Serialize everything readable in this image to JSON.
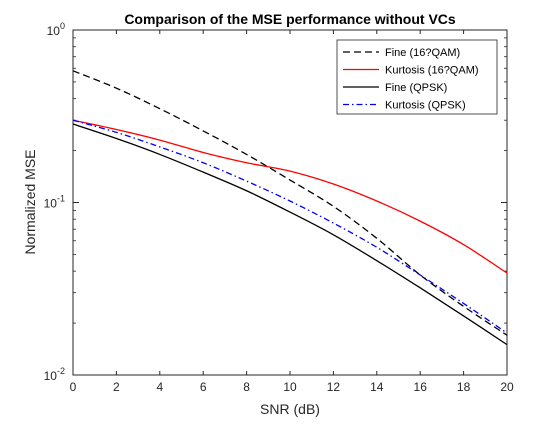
{
  "chart_data": {
    "type": "line",
    "title": "Comparison of the MSE performance without VCs",
    "xlabel": "SNR (dB)",
    "ylabel": "Normalized MSE",
    "xlim": [
      0,
      20
    ],
    "ylim": [
      0.01,
      1
    ],
    "y_scale": "log",
    "x_ticks": [
      0,
      2,
      4,
      6,
      8,
      10,
      12,
      14,
      16,
      18,
      20
    ],
    "y_ticks": [
      {
        "value": 0.01,
        "base": "10",
        "exp": "-2"
      },
      {
        "value": 0.1,
        "base": "10",
        "exp": "-1"
      },
      {
        "value": 1,
        "base": "10",
        "exp": "0"
      }
    ],
    "grid": false,
    "legend_position": "top-right",
    "x": [
      0,
      2,
      4,
      6,
      8,
      10,
      12,
      14,
      16,
      18,
      20
    ],
    "series": [
      {
        "name": "Fine (16?QAM)",
        "color": "#000000",
        "dash": "dashed",
        "values": [
          0.58,
          0.46,
          0.35,
          0.26,
          0.19,
          0.135,
          0.095,
          0.062,
          0.038,
          0.025,
          0.017
        ]
      },
      {
        "name": "Kurtosis (16?QAM)",
        "color": "#ff0000",
        "dash": "solid",
        "values": [
          0.3,
          0.265,
          0.23,
          0.195,
          0.17,
          0.152,
          0.128,
          0.102,
          0.078,
          0.057,
          0.039
        ]
      },
      {
        "name": "Fine (QPSK)",
        "color": "#000000",
        "dash": "solid",
        "values": [
          0.285,
          0.235,
          0.19,
          0.15,
          0.117,
          0.088,
          0.065,
          0.046,
          0.032,
          0.022,
          0.015
        ]
      },
      {
        "name": "Kurtosis (QPSK)",
        "color": "#0000ff",
        "dash": "dashdot",
        "values": [
          0.3,
          0.255,
          0.21,
          0.17,
          0.133,
          0.102,
          0.076,
          0.055,
          0.038,
          0.026,
          0.0175
        ]
      }
    ]
  }
}
